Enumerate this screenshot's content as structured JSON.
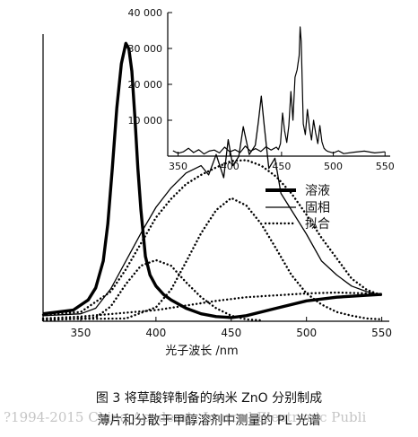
{
  "chart_data": [
    {
      "type": "line",
      "title": "",
      "xlabel": "光子波长 /nm",
      "ylabel": "",
      "xlim": [
        325,
        555
      ],
      "ylim": [
        0,
        31
      ],
      "xticks": [
        350,
        400,
        450,
        500,
        550
      ],
      "grid": false,
      "legend_position": "right",
      "series": [
        {
          "name": "溶液",
          "style": "thick-solid",
          "x": [
            325,
            345,
            355,
            360,
            365,
            368,
            371,
            374,
            377,
            380,
            382,
            384,
            386,
            388,
            390,
            393,
            396,
            400,
            405,
            410,
            420,
            430,
            440,
            450,
            460,
            480,
            500,
            520,
            540,
            550
          ],
          "y": [
            0.8,
            1.2,
            2.3,
            3.6,
            6.5,
            10.5,
            16.5,
            23.0,
            27.8,
            30.0,
            29.4,
            27.0,
            22.0,
            16.5,
            12.0,
            7.0,
            5.0,
            3.8,
            2.9,
            2.3,
            1.4,
            0.8,
            0.5,
            0.4,
            0.6,
            1.4,
            2.2,
            2.6,
            2.8,
            2.9
          ]
        },
        {
          "name": "固相",
          "style": "thin-solid",
          "x": [
            325,
            350,
            360,
            370,
            380,
            390,
            400,
            410,
            420,
            430,
            435,
            440,
            445,
            448,
            451,
            455,
            458,
            462,
            466,
            468,
            470,
            472,
            475,
            479,
            483,
            490,
            500,
            510,
            520,
            530,
            540,
            550
          ],
          "y": [
            0.6,
            0.8,
            1.4,
            3.5,
            6.5,
            9.5,
            12.3,
            14.4,
            16.0,
            16.8,
            15.8,
            18.0,
            15.5,
            19.6,
            16.8,
            17.8,
            21.0,
            18.0,
            19.0,
            21.5,
            24.3,
            21.0,
            16.5,
            17.6,
            13.8,
            12.0,
            9.4,
            6.5,
            5.0,
            3.8,
            3.2,
            2.8
          ]
        },
        {
          "name": "拟合",
          "style": "dotted",
          "x": [
            325,
            350,
            370,
            380,
            390,
            400,
            410,
            420,
            430,
            440,
            450,
            460,
            470,
            480,
            490,
            500,
            510,
            520,
            530,
            540,
            550
          ],
          "y": [
            0.7,
            1.0,
            3.2,
            5.6,
            8.4,
            11.2,
            13.2,
            14.8,
            15.8,
            16.6,
            17.3,
            17.4,
            16.8,
            15.6,
            13.8,
            11.5,
            9.0,
            6.8,
            4.6,
            3.4,
            2.8
          ]
        },
        {
          "name": "",
          "style": "dotted",
          "x": [
            325,
            380,
            400,
            410,
            420,
            430,
            440,
            450,
            460,
            470,
            480,
            490,
            500,
            510,
            520,
            530,
            540,
            550
          ],
          "y": [
            0.2,
            0.3,
            1.5,
            3.4,
            6.4,
            9.5,
            12.0,
            13.3,
            12.5,
            10.5,
            7.8,
            5.0,
            3.0,
            1.8,
            1.0,
            0.6,
            0.3,
            0.2
          ]
        },
        {
          "name": "",
          "style": "dotted",
          "x": [
            325,
            360,
            370,
            380,
            390,
            400,
            410,
            420,
            430,
            440,
            450,
            460,
            470
          ],
          "y": [
            0.1,
            0.4,
            1.6,
            4.0,
            6.0,
            6.6,
            6.0,
            4.2,
            2.6,
            1.4,
            0.6,
            0.2,
            0.1
          ]
        },
        {
          "name": "",
          "style": "dotted",
          "x": [
            325,
            350,
            400,
            420,
            440,
            460,
            480,
            500,
            520,
            540,
            550
          ],
          "y": [
            0.3,
            0.5,
            1.2,
            1.7,
            2.2,
            2.6,
            2.8,
            3.0,
            3.1,
            3.0,
            2.9
          ]
        }
      ]
    },
    {
      "type": "line",
      "title": "",
      "xlabel": "",
      "ylabel": "",
      "xlim": [
        340,
        555
      ],
      "ylim": [
        0,
        40000
      ],
      "xticks": [
        350,
        400,
        450,
        500,
        550
      ],
      "yticks": [
        10000,
        20000,
        30000,
        40000
      ],
      "ytick_labels": [
        "10 000",
        "20 000",
        "30 000",
        "40 000"
      ],
      "grid": false,
      "series": [
        {
          "name": "",
          "x": [
            345,
            350,
            355,
            360,
            365,
            370,
            375,
            380,
            385,
            390,
            395,
            400,
            405,
            410,
            415,
            420,
            425,
            430,
            435,
            440,
            445,
            447,
            449,
            451,
            453,
            455,
            457,
            459,
            461,
            463,
            465,
            467,
            468,
            469,
            470,
            471,
            473,
            475,
            477,
            479,
            481,
            483,
            485,
            487,
            489,
            491,
            493,
            495,
            500,
            505,
            510,
            520,
            530,
            540,
            550
          ],
          "y": [
            1500,
            800,
            1200,
            2200,
            1000,
            1800,
            600,
            1400,
            1700,
            900,
            2500,
            1200,
            1800,
            1000,
            2800,
            1400,
            2100,
            1300,
            2600,
            1700,
            2500,
            1800,
            3500,
            12000,
            7000,
            3800,
            8500,
            18000,
            10000,
            22000,
            24000,
            28000,
            36000,
            32000,
            20000,
            9000,
            6000,
            13000,
            8000,
            4500,
            10000,
            6500,
            3500,
            8500,
            4000,
            2200,
            1600,
            1300,
            900,
            1500,
            700,
            1100,
            1400,
            900,
            1200
          ]
        }
      ]
    }
  ],
  "legend": {
    "items": [
      {
        "label": "溶液",
        "style": "thick-solid"
      },
      {
        "label": "固相",
        "style": "thin-solid"
      },
      {
        "label": "拟合",
        "style": "dotted"
      }
    ]
  },
  "caption": {
    "line1": "图 3   将草酸锌制备的纳米 ZnO 分别制成",
    "line2": "薄片和分散于甲醇溶剂中测量的 PL 光谱"
  },
  "watermark": "?1994-2015 China Academic Journal Electronic Publi"
}
